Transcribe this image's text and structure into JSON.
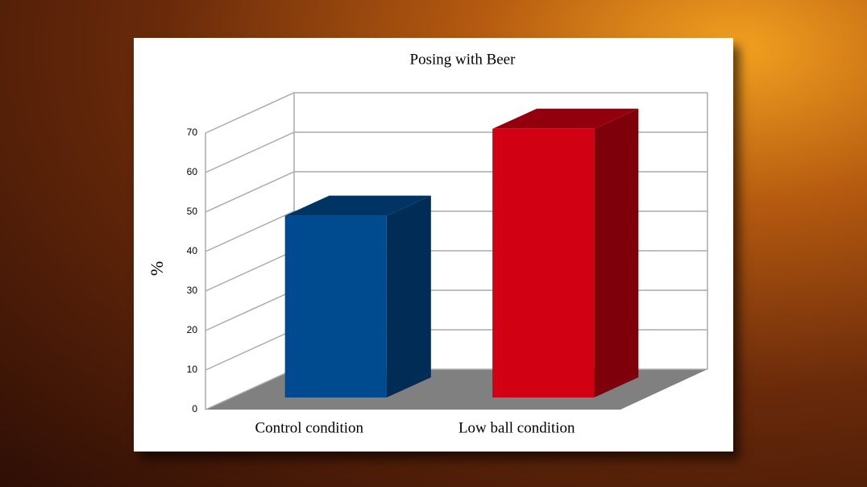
{
  "chart_data": {
    "type": "bar3d",
    "title": "Posing with Beer",
    "y_label": "%",
    "categories": [
      "Control condition",
      "Low ball condition"
    ],
    "values": [
      46,
      68
    ],
    "colors": [
      "#004a8f",
      "#d10012"
    ],
    "ylim": [
      0,
      70
    ],
    "yticks": [
      0,
      10,
      20,
      30,
      40,
      50,
      60,
      70
    ],
    "grid": true
  }
}
